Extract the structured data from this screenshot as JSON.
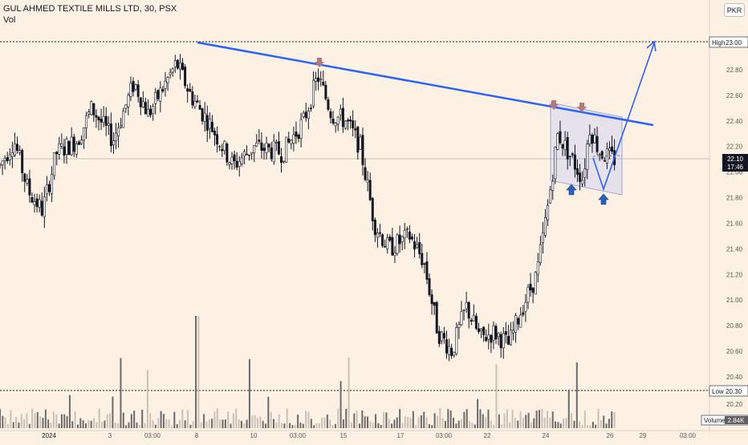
{
  "header": {
    "title": "GUL AHMED TEXTILE MILLS LTD, 30, PSX",
    "volume_label": "Vol",
    "currency_button": "PKR"
  },
  "colors": {
    "background": "#fdf1e3",
    "candle": "#131722",
    "trendline": "#2962ff",
    "pattern_fill": "#d7d9f0",
    "arrow_down": "#b5787a",
    "arrow_up": "#2a5fbe",
    "volume_dark": "#6b6b6b",
    "volume_light": "#c9c1b7",
    "price_label_bg": "#131722"
  },
  "chart_data": {
    "type": "candlestick",
    "title": "GUL AHMED TEXTILE MILLS LTD, 30, PSX",
    "y_axis": {
      "ticks": [
        "23.00",
        "22.80",
        "22.60",
        "22.40",
        "22.20",
        "22.00",
        "21.80",
        "21.60",
        "21.40",
        "21.20",
        "21.00",
        "20.80",
        "20.60",
        "20.40",
        "20.20"
      ],
      "range": [
        20.15,
        23.0
      ]
    },
    "x_axis": {
      "ticks": [
        "2024",
        "3",
        "03:00",
        "8",
        "10",
        "03:00",
        "15",
        "17",
        "03:00",
        "22",
        "24",
        "26",
        "29",
        "03:00"
      ]
    },
    "markers": {
      "high": {
        "label": "High",
        "value": "23.00"
      },
      "low": {
        "label": "Low",
        "value": "20.30"
      },
      "last": {
        "value": "22.10",
        "countdown": "17:46"
      },
      "volume": {
        "label": "Volume",
        "value": "2.84K"
      }
    },
    "price_path": [
      {
        "x": 0.0,
        "v": 22.05
      },
      {
        "x": 0.02,
        "v": 22.25
      },
      {
        "x": 0.04,
        "v": 21.85
      },
      {
        "x": 0.06,
        "v": 21.7
      },
      {
        "x": 0.08,
        "v": 22.15
      },
      {
        "x": 0.11,
        "v": 22.25
      },
      {
        "x": 0.13,
        "v": 22.5
      },
      {
        "x": 0.16,
        "v": 22.25
      },
      {
        "x": 0.19,
        "v": 22.7
      },
      {
        "x": 0.21,
        "v": 22.45
      },
      {
        "x": 0.25,
        "v": 22.85
      },
      {
        "x": 0.27,
        "v": 22.6
      },
      {
        "x": 0.3,
        "v": 22.35
      },
      {
        "x": 0.33,
        "v": 22.05
      },
      {
        "x": 0.36,
        "v": 22.2
      },
      {
        "x": 0.4,
        "v": 22.15
      },
      {
        "x": 0.43,
        "v": 22.4
      },
      {
        "x": 0.45,
        "v": 22.75
      },
      {
        "x": 0.47,
        "v": 22.45
      },
      {
        "x": 0.49,
        "v": 22.4
      },
      {
        "x": 0.51,
        "v": 22.2
      },
      {
        "x": 0.53,
        "v": 21.6
      },
      {
        "x": 0.55,
        "v": 21.4
      },
      {
        "x": 0.58,
        "v": 21.5
      },
      {
        "x": 0.6,
        "v": 21.3
      },
      {
        "x": 0.62,
        "v": 20.75
      },
      {
        "x": 0.64,
        "v": 20.6
      },
      {
        "x": 0.66,
        "v": 20.95
      },
      {
        "x": 0.68,
        "v": 20.7
      },
      {
        "x": 0.7,
        "v": 20.75
      },
      {
        "x": 0.72,
        "v": 20.65
      },
      {
        "x": 0.74,
        "v": 20.95
      },
      {
        "x": 0.76,
        "v": 21.2
      },
      {
        "x": 0.775,
        "v": 21.7
      },
      {
        "x": 0.79,
        "v": 22.3
      },
      {
        "x": 0.81,
        "v": 22.1
      },
      {
        "x": 0.825,
        "v": 21.95
      },
      {
        "x": 0.835,
        "v": 22.35
      },
      {
        "x": 0.85,
        "v": 22.15
      },
      {
        "x": 0.87,
        "v": 22.1
      }
    ],
    "annotations": {
      "trendline": {
        "from": {
          "x": 0.28,
          "v": 23.0
        },
        "to": {
          "x": 0.94,
          "v": 22.36
        }
      },
      "projection": [
        {
          "x": 0.87,
          "v": 22.1
        },
        {
          "x": 0.868,
          "v": 21.85
        },
        {
          "x": 0.935,
          "v": 22.97
        }
      ]
    }
  }
}
